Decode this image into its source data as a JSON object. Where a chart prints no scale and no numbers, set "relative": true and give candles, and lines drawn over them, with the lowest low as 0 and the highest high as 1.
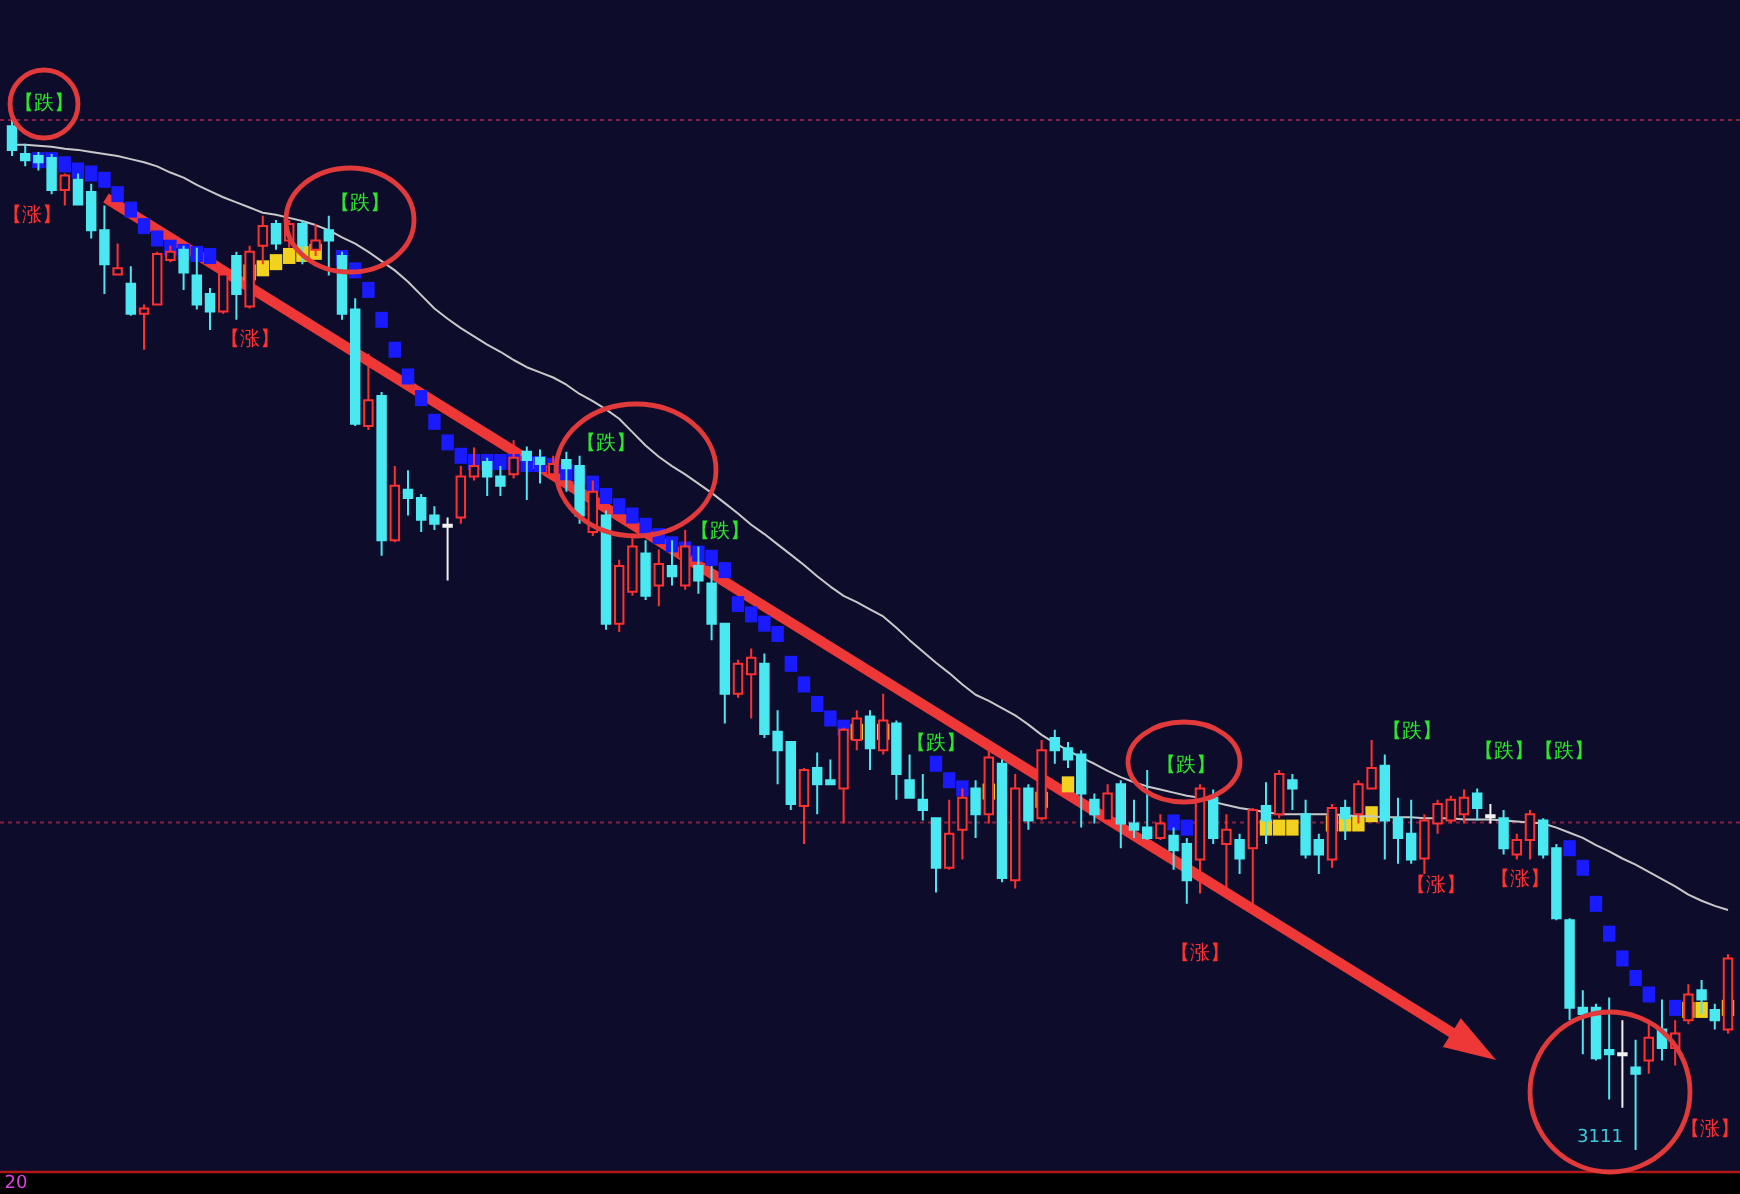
{
  "chart_data": {
    "type": "candlestick",
    "relative": true,
    "categories": [
      null,
      null,
      null,
      null,
      null,
      null,
      null,
      null,
      null,
      null,
      null,
      null,
      null,
      null,
      null,
      null,
      null,
      null,
      null,
      null,
      null,
      null,
      null,
      null,
      null,
      null,
      null,
      null,
      null,
      null,
      null,
      null,
      null,
      null,
      null,
      null,
      null,
      null,
      null,
      null,
      null,
      null,
      null,
      null,
      null,
      null,
      null,
      null,
      null,
      null,
      null,
      null,
      null,
      null,
      null,
      null,
      null,
      null,
      null,
      null,
      null,
      null,
      null,
      null,
      null,
      null,
      null,
      null,
      null,
      null,
      null,
      null,
      null,
      null,
      null,
      null,
      null,
      null,
      null,
      null,
      null,
      null,
      null,
      null,
      null,
      null,
      null,
      null,
      null,
      null,
      null,
      null,
      null,
      null,
      null,
      null,
      null,
      null,
      null,
      null,
      null,
      null,
      null,
      null,
      null,
      null,
      null,
      null,
      null,
      null,
      null,
      null,
      null,
      null,
      null,
      null,
      null,
      null,
      null,
      null,
      null,
      null,
      null,
      null,
      null,
      null,
      null,
      null,
      null,
      null,
      null
    ],
    "ohlc": [
      [
        0.994,
        1.0,
        0.965,
        0.971
      ],
      [
        0.967,
        0.977,
        0.955,
        0.961
      ],
      [
        0.965,
        0.969,
        0.951,
        0.959
      ],
      [
        0.963,
        0.967,
        0.928,
        0.932
      ],
      [
        0.932,
        0.948,
        0.917,
        0.946
      ],
      [
        0.942,
        0.948,
        0.917,
        0.918
      ],
      [
        0.93,
        0.938,
        0.885,
        0.893
      ],
      [
        0.893,
        0.917,
        0.831,
        0.86
      ],
      [
        0.85,
        0.88,
        0.849,
        0.856
      ],
      [
        0.841,
        0.858,
        0.81,
        0.812
      ],
      [
        0.812,
        0.821,
        0.777,
        0.817
      ],
      [
        0.821,
        0.872,
        0.821,
        0.87
      ],
      [
        0.864,
        0.878,
        0.862,
        0.872
      ],
      [
        0.874,
        0.878,
        0.835,
        0.852
      ],
      [
        0.849,
        0.876,
        0.816,
        0.821
      ],
      [
        0.831,
        0.837,
        0.796,
        0.814
      ],
      [
        0.814,
        0.854,
        0.812,
        0.85
      ],
      [
        0.868,
        0.872,
        0.806,
        0.831
      ],
      [
        0.819,
        0.878,
        0.817,
        0.872
      ],
      [
        0.878,
        0.907,
        0.86,
        0.897
      ],
      [
        0.899,
        0.903,
        0.874,
        0.88
      ],
      [
        0.883,
        0.903,
        0.876,
        0.899
      ],
      [
        0.899,
        0.903,
        0.86,
        0.878
      ],
      [
        0.874,
        0.899,
        0.868,
        0.883
      ],
      [
        0.893,
        0.907,
        0.849,
        0.883
      ],
      [
        0.868,
        0.872,
        0.806,
        0.812
      ],
      [
        0.816,
        0.827,
        0.703,
        0.705
      ],
      [
        0.703,
        0.773,
        0.699,
        0.728
      ],
      [
        0.732,
        0.736,
        0.577,
        0.592
      ],
      [
        0.592,
        0.664,
        0.59,
        0.645
      ],
      [
        0.641,
        0.66,
        0.616,
        0.633
      ],
      [
        0.633,
        0.637,
        0.6,
        0.612
      ],
      [
        0.616,
        0.625,
        0.602,
        0.608
      ],
      [
        0.606,
        0.614,
        0.553,
        0.606
      ],
      [
        0.614,
        0.664,
        0.608,
        0.654
      ],
      [
        0.654,
        0.682,
        0.65,
        0.664
      ],
      [
        0.668,
        0.672,
        0.635,
        0.654
      ],
      [
        0.654,
        0.664,
        0.635,
        0.645
      ],
      [
        0.656,
        0.689,
        0.652,
        0.672
      ],
      [
        0.678,
        0.683,
        0.631,
        0.67
      ],
      [
        0.672,
        0.68,
        0.647,
        0.666
      ],
      [
        0.656,
        0.674,
        0.65,
        0.666
      ],
      [
        0.67,
        0.678,
        0.639,
        0.662
      ],
      [
        0.664,
        0.674,
        0.608,
        0.616
      ],
      [
        0.6,
        0.65,
        0.596,
        0.639
      ],
      [
        0.616,
        0.621,
        0.505,
        0.511
      ],
      [
        0.511,
        0.573,
        0.503,
        0.567
      ],
      [
        0.542,
        0.596,
        0.538,
        0.586
      ],
      [
        0.579,
        0.592,
        0.534,
        0.538
      ],
      [
        0.548,
        0.583,
        0.528,
        0.569
      ],
      [
        0.567,
        0.592,
        0.548,
        0.557
      ],
      [
        0.548,
        0.602,
        0.544,
        0.586
      ],
      [
        0.567,
        0.586,
        0.54,
        0.553
      ],
      [
        0.55,
        0.567,
        0.495,
        0.511
      ],
      [
        0.511,
        0.511,
        0.414,
        0.443
      ],
      [
        0.443,
        0.476,
        0.439,
        0.472
      ],
      [
        0.462,
        0.487,
        0.419,
        0.478
      ],
      [
        0.472,
        0.482,
        0.4,
        0.404
      ],
      [
        0.406,
        0.427,
        0.355,
        0.388
      ],
      [
        0.396,
        0.396,
        0.33,
        0.336
      ],
      [
        0.334,
        0.371,
        0.297,
        0.369
      ],
      [
        0.371,
        0.386,
        0.326,
        0.355
      ],
      [
        0.359,
        0.379,
        0.355,
        0.355
      ],
      [
        0.351,
        0.41,
        0.317,
        0.408
      ],
      [
        0.398,
        0.427,
        0.388,
        0.419
      ],
      [
        0.421,
        0.427,
        0.369,
        0.39
      ],
      [
        0.388,
        0.443,
        0.384,
        0.417
      ],
      [
        0.414,
        0.417,
        0.34,
        0.365
      ],
      [
        0.359,
        0.384,
        0.342,
        0.342
      ],
      [
        0.34,
        0.365,
        0.32,
        0.33
      ],
      [
        0.322,
        0.322,
        0.25,
        0.274
      ],
      [
        0.274,
        0.34,
        0.272,
        0.307
      ],
      [
        0.311,
        0.351,
        0.282,
        0.342
      ],
      [
        0.351,
        0.359,
        0.303,
        0.326
      ],
      [
        0.326,
        0.388,
        0.317,
        0.381
      ],
      [
        0.375,
        0.379,
        0.26,
        0.264
      ],
      [
        0.262,
        0.365,
        0.254,
        0.351
      ],
      [
        0.351,
        0.355,
        0.311,
        0.32
      ],
      [
        0.322,
        0.398,
        0.32,
        0.388
      ],
      [
        0.4,
        0.408,
        0.375,
        0.388
      ],
      [
        0.39,
        0.396,
        0.371,
        0.379
      ],
      [
        0.384,
        0.388,
        0.313,
        0.346
      ],
      [
        0.34,
        0.346,
        0.317,
        0.326
      ],
      [
        0.32,
        0.355,
        0.317,
        0.346
      ],
      [
        0.355,
        0.359,
        0.293,
        0.317
      ],
      [
        0.317,
        0.34,
        0.303,
        0.311
      ],
      [
        0.313,
        0.369,
        0.301,
        0.303
      ],
      [
        0.303,
        0.326,
        0.301,
        0.317
      ],
      [
        0.305,
        0.313,
        0.272,
        0.291
      ],
      [
        0.297,
        0.303,
        0.239,
        0.262
      ],
      [
        0.282,
        0.355,
        0.249,
        0.351
      ],
      [
        0.342,
        0.35,
        0.297,
        0.303
      ],
      [
        0.297,
        0.326,
        0.254,
        0.311
      ],
      [
        0.301,
        0.307,
        0.268,
        0.283
      ],
      [
        0.293,
        0.332,
        0.239,
        0.33
      ],
      [
        0.334,
        0.357,
        0.297,
        0.32
      ],
      [
        0.326,
        0.369,
        0.322,
        0.365
      ],
      [
        0.359,
        0.365,
        0.33,
        0.351
      ],
      [
        0.326,
        0.34,
        0.283,
        0.287
      ],
      [
        0.301,
        0.307,
        0.268,
        0.287
      ],
      [
        0.282,
        0.336,
        0.274,
        0.332
      ],
      [
        0.332,
        0.34,
        0.301,
        0.322
      ],
      [
        0.326,
        0.359,
        0.317,
        0.355
      ],
      [
        0.351,
        0.398,
        0.35,
        0.371
      ],
      [
        0.373,
        0.384,
        0.282,
        0.32
      ],
      [
        0.322,
        0.342,
        0.278,
        0.303
      ],
      [
        0.307,
        0.34,
        0.278,
        0.282
      ],
      [
        0.283,
        0.326,
        0.268,
        0.32
      ],
      [
        0.317,
        0.34,
        0.307,
        0.336
      ],
      [
        0.32,
        0.344,
        0.317,
        0.34
      ],
      [
        0.326,
        0.35,
        0.317,
        0.342
      ],
      [
        0.346,
        0.351,
        0.32,
        0.332
      ],
      [
        0.324,
        0.336,
        0.317,
        0.324
      ],
      [
        0.322,
        0.33,
        0.287,
        0.293
      ],
      [
        0.287,
        0.307,
        0.282,
        0.301
      ],
      [
        0.301,
        0.33,
        0.282,
        0.326
      ],
      [
        0.32,
        0.322,
        0.283,
        0.287
      ],
      [
        0.293,
        0.297,
        0.223,
        0.225
      ],
      [
        0.223,
        0.225,
        0.126,
        0.138
      ],
      [
        0.138,
        0.155,
        0.093,
        0.132
      ],
      [
        0.138,
        0.142,
        0.087,
        0.089
      ],
      [
        0.097,
        0.148,
        0.049,
        0.093
      ],
      [
        0.093,
        0.126,
        0.041,
        0.093
      ],
      [
        0.08,
        0.107,
        0.0,
        0.074
      ],
      [
        0.087,
        0.126,
        0.074,
        0.109
      ],
      [
        0.117,
        0.146,
        0.087,
        0.099
      ],
      [
        0.099,
        0.126,
        0.082,
        0.113
      ],
      [
        0.126,
        0.161,
        0.122,
        0.151
      ],
      [
        0.155,
        0.165,
        0.132,
        0.146
      ],
      [
        0.136,
        0.142,
        0.117,
        0.126
      ],
      [
        0.117,
        0.19,
        0.113,
        0.186
      ]
    ],
    "series": [
      {
        "type": "scatter",
        "marker": "square",
        "values": [
          null,
          null,
          0.961,
          0.961,
          0.957,
          0.951,
          0.948,
          0.942,
          0.928,
          0.913,
          0.897,
          0.885,
          0.876,
          0.872,
          0.87,
          0.868,
          null,
          null,
          0.852,
          0.856,
          0.862,
          0.868,
          0.87,
          0.872,
          null,
          0.866,
          0.854,
          0.835,
          0.806,
          0.777,
          0.751,
          0.73,
          0.707,
          0.687,
          0.674,
          0.668,
          0.668,
          0.668,
          0.668,
          0.666,
          0.666,
          0.664,
          0.658,
          0.654,
          0.647,
          0.635,
          0.625,
          0.616,
          0.606,
          0.596,
          0.588,
          0.583,
          0.579,
          0.575,
          0.563,
          0.53,
          0.52,
          0.511,
          0.501,
          0.472,
          0.452,
          0.433,
          0.419,
          0.41,
          0.406,
          null,
          0.406,
          null,
          null,
          null,
          0.375,
          0.359,
          0.351,
          null,
          0.348,
          null,
          null,
          null,
          0.34,
          null,
          0.355,
          null,
          null,
          null,
          null,
          null,
          null,
          null,
          0.318,
          0.313,
          null,
          null,
          null,
          null,
          null,
          0.313,
          0.313,
          0.313,
          null,
          null,
          0.317,
          0.317,
          0.317,
          0.326,
          null,
          null,
          null,
          null,
          null,
          null,
          null,
          null,
          null,
          null,
          null,
          null,
          null,
          null,
          0.293,
          0.274,
          0.239,
          0.21,
          0.186,
          0.167,
          0.151,
          null,
          0.138,
          0.136,
          0.136,
          null,
          0.138
        ],
        "colors": [
          null,
          null,
          "#1a1aff",
          "#1a1aff",
          "#1a1aff",
          "#1a1aff",
          "#1a1aff",
          "#1a1aff",
          "#1a1aff",
          "#1a1aff",
          "#1a1aff",
          "#1a1aff",
          "#1a1aff",
          "#1a1aff",
          "#1a1aff",
          "#1a1aff",
          null,
          null,
          "#f2d21e",
          "#f2d21e",
          "#f2d21e",
          "#f2d21e",
          "#f2d21e",
          "#f2d21e",
          null,
          "#1a1aff",
          "#1a1aff",
          "#1a1aff",
          "#1a1aff",
          "#1a1aff",
          "#1a1aff",
          "#1a1aff",
          "#1a1aff",
          "#1a1aff",
          "#1a1aff",
          "#1a1aff",
          "#1a1aff",
          "#1a1aff",
          "#1a1aff",
          "#1a1aff",
          "#1a1aff",
          "#1a1aff",
          "#1a1aff",
          "#1a1aff",
          "#1a1aff",
          "#1a1aff",
          "#1a1aff",
          "#1a1aff",
          "#1a1aff",
          "#1a1aff",
          "#1a1aff",
          "#1a1aff",
          "#1a1aff",
          "#1a1aff",
          "#1a1aff",
          "#1a1aff",
          "#1a1aff",
          "#1a1aff",
          "#1a1aff",
          "#1a1aff",
          "#1a1aff",
          "#1a1aff",
          "#1a1aff",
          "#1a1aff",
          "#f2d21e",
          null,
          "#f2d21e",
          null,
          null,
          null,
          "#1a1aff",
          "#1a1aff",
          "#1a1aff",
          null,
          "#f2d21e",
          null,
          null,
          null,
          "#f2d21e",
          null,
          "#f2d21e",
          null,
          null,
          null,
          null,
          null,
          null,
          null,
          "#1a1aff",
          "#1a1aff",
          null,
          null,
          null,
          null,
          null,
          "#f2d21e",
          "#f2d21e",
          "#f2d21e",
          null,
          null,
          "#f2d21e",
          "#f2d21e",
          "#f2d21e",
          "#f2d21e",
          null,
          null,
          null,
          null,
          null,
          null,
          null,
          null,
          null,
          null,
          null,
          null,
          null,
          null,
          "#1a1aff",
          "#1a1aff",
          "#1a1aff",
          "#1a1aff",
          "#1a1aff",
          "#1a1aff",
          "#1a1aff",
          null,
          "#1a1aff",
          "#f2d21e",
          "#f2d21e",
          null,
          "#f2d21e"
        ]
      },
      {
        "type": "line",
        "color": "#c8c8c8",
        "values": [
          0.976,
          0.976,
          0.975,
          0.974,
          0.972,
          0.971,
          0.969,
          0.967,
          0.965,
          0.962,
          0.959,
          0.955,
          0.949,
          0.944,
          0.937,
          0.931,
          0.925,
          0.92,
          0.915,
          0.91,
          0.908,
          0.905,
          0.902,
          0.898,
          0.893,
          0.886,
          0.88,
          0.872,
          0.863,
          0.854,
          0.843,
          0.83,
          0.817,
          0.807,
          0.798,
          0.79,
          0.782,
          0.775,
          0.767,
          0.76,
          0.755,
          0.75,
          0.743,
          0.734,
          0.727,
          0.719,
          0.71,
          0.697,
          0.684,
          0.673,
          0.664,
          0.656,
          0.647,
          0.638,
          0.628,
          0.618,
          0.607,
          0.598,
          0.588,
          0.578,
          0.568,
          0.557,
          0.547,
          0.538,
          0.532,
          0.525,
          0.518,
          0.507,
          0.495,
          0.484,
          0.473,
          0.463,
          0.452,
          0.442,
          0.436,
          0.429,
          0.422,
          0.413,
          0.403,
          0.395,
          0.388,
          0.381,
          0.375,
          0.368,
          0.362,
          0.357,
          0.353,
          0.35,
          0.347,
          0.344,
          0.342,
          0.338,
          0.335,
          0.332,
          0.33,
          0.328,
          0.326,
          0.326,
          0.326,
          0.326,
          0.326,
          0.325,
          0.324,
          0.324,
          0.323,
          0.323,
          0.323,
          0.322,
          0.322,
          0.322,
          0.321,
          0.321,
          0.321,
          0.32,
          0.319,
          0.318,
          0.317,
          0.313,
          0.308,
          0.303,
          0.296,
          0.29,
          0.283,
          0.277,
          0.27,
          0.263,
          0.256,
          0.248,
          0.242,
          0.237,
          0.233
        ]
      }
    ],
    "ref_lines": [
      {
        "axis": "y",
        "value": 1,
        "color": "#8a2040",
        "line_style": "dotted"
      },
      {
        "axis": "y",
        "value": 0.318,
        "color": "#8a2040",
        "line_style": "dotted"
      }
    ],
    "annotations": [
      "【跌】",
      "【涨】",
      "【涨】",
      "【跌】",
      "【跌】",
      "【跌】",
      "【跌】",
      "【跌】",
      "【涨】",
      "【跌】",
      "【跌】",
      "【跌】",
      "【涨】",
      "【涨】",
      "【涨】",
      "3111",
      "20"
    ]
  }
}
